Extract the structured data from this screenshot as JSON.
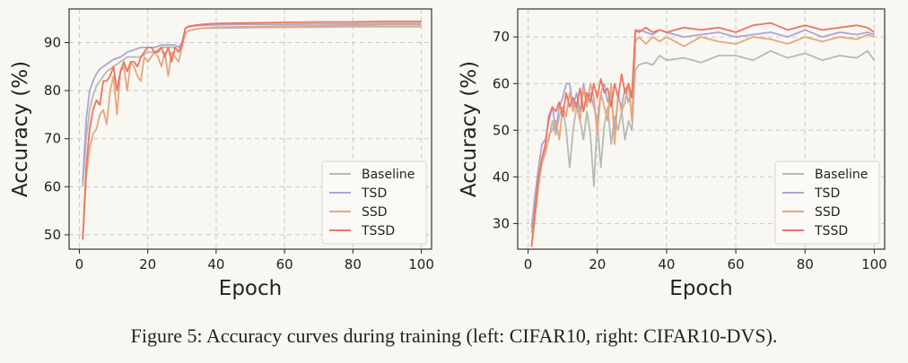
{
  "caption": "Figure 5: Accuracy curves during training (left: CIFAR10, right: CIFAR10-DVS).",
  "series_colors": {
    "Baseline": "#b8b8b4",
    "TSD": "#a9a6d6",
    "SSD": "#e8a67c",
    "TSSD": "#ec7560"
  },
  "chart_data": [
    {
      "type": "line",
      "xlabel": "Epoch",
      "ylabel": "Accuracy (%)",
      "xlim": [
        -3,
        103
      ],
      "ylim": [
        47,
        97
      ],
      "xticks": [
        0,
        20,
        40,
        60,
        80,
        100
      ],
      "yticks": [
        50,
        60,
        70,
        80,
        90
      ],
      "grid": true,
      "legend_position": "bottom-right",
      "series": [
        {
          "name": "Baseline",
          "x": [
            1,
            2,
            3,
            4,
            5,
            6,
            8,
            10,
            12,
            14,
            16,
            18,
            20,
            22,
            24,
            26,
            28,
            29,
            30,
            31,
            32,
            34,
            36,
            40,
            50,
            60,
            70,
            80,
            90,
            100
          ],
          "values": [
            60,
            70,
            76,
            79,
            81,
            82,
            84,
            85,
            86,
            87,
            87,
            87,
            88,
            88,
            89,
            89,
            89,
            88,
            90,
            92,
            92.5,
            92.8,
            93,
            93,
            93.1,
            93.2,
            93.2,
            93.3,
            93.3,
            93.3
          ]
        },
        {
          "name": "TSD",
          "x": [
            1,
            2,
            3,
            4,
            5,
            6,
            8,
            10,
            12,
            14,
            16,
            18,
            20,
            22,
            24,
            26,
            28,
            29,
            30,
            31,
            32,
            34,
            36,
            40,
            50,
            60,
            70,
            80,
            90,
            100
          ],
          "values": [
            61,
            74,
            80,
            82,
            83.5,
            84.5,
            85.5,
            86.5,
            87,
            88,
            88.5,
            89,
            89,
            89,
            89.5,
            89.5,
            89.5,
            89,
            90,
            93,
            93.3,
            93.5,
            93.6,
            93.7,
            93.8,
            93.8,
            93.9,
            93.9,
            94,
            94
          ]
        },
        {
          "name": "SSD",
          "x": [
            1,
            2,
            3,
            4,
            5,
            6,
            7,
            8,
            9,
            10,
            11,
            12,
            13,
            14,
            15,
            16,
            17,
            18,
            19,
            20,
            21,
            22,
            23,
            24,
            25,
            26,
            27,
            28,
            29,
            30,
            31,
            32,
            34,
            36,
            40,
            50,
            60,
            70,
            80,
            90,
            100
          ],
          "values": [
            49,
            62,
            68,
            71,
            72,
            75,
            76,
            73,
            80,
            83,
            75,
            84,
            85,
            80,
            86,
            85,
            83,
            82,
            87,
            86,
            87,
            88,
            87,
            85,
            88,
            83,
            88,
            87,
            86,
            89,
            92,
            92.5,
            92.8,
            93,
            93.2,
            93.3,
            93.4,
            93.5,
            93.6,
            93.7,
            93.7
          ]
        },
        {
          "name": "TSSD",
          "x": [
            1,
            2,
            3,
            4,
            5,
            6,
            7,
            8,
            9,
            10,
            11,
            12,
            13,
            14,
            15,
            16,
            17,
            18,
            19,
            20,
            21,
            22,
            23,
            24,
            25,
            26,
            27,
            28,
            29,
            30,
            31,
            32,
            34,
            36,
            40,
            50,
            60,
            70,
            80,
            90,
            100
          ],
          "values": [
            49,
            64,
            72,
            76,
            78,
            77,
            82,
            82,
            83,
            85,
            80,
            84,
            86,
            84,
            86,
            86,
            85,
            87,
            88,
            89,
            89,
            88,
            88,
            89,
            87,
            89,
            86,
            89,
            88,
            89.5,
            93,
            93.4,
            93.6,
            93.8,
            94,
            94.1,
            94.2,
            94.3,
            94.3,
            94.4,
            94.4
          ]
        }
      ]
    },
    {
      "type": "line",
      "xlabel": "Epoch",
      "ylabel": "Accuracy (%)",
      "xlim": [
        -3,
        103
      ],
      "ylim": [
        24.5,
        76
      ],
      "xticks": [
        0,
        20,
        40,
        60,
        80,
        100
      ],
      "yticks": [
        30,
        40,
        50,
        60,
        70
      ],
      "grid": true,
      "legend_position": "bottom-right",
      "series": [
        {
          "name": "Baseline",
          "x": [
            1,
            2,
            3,
            4,
            5,
            6,
            7,
            8,
            9,
            10,
            11,
            12,
            13,
            14,
            15,
            16,
            17,
            18,
            19,
            20,
            21,
            22,
            23,
            24,
            25,
            26,
            27,
            28,
            29,
            30,
            31,
            32,
            34,
            36,
            38,
            40,
            45,
            50,
            55,
            60,
            65,
            70,
            75,
            80,
            85,
            90,
            95,
            98,
            100
          ],
          "values": [
            28,
            33,
            38,
            44,
            46,
            48,
            52,
            49,
            53,
            55,
            50,
            42,
            50,
            55,
            52,
            48,
            54,
            49,
            38,
            52,
            42,
            51,
            55,
            47,
            53,
            50,
            54,
            48,
            52,
            50,
            63,
            64,
            64.5,
            64,
            66,
            65,
            65.5,
            64.5,
            66,
            66,
            65,
            67,
            65.5,
            66.5,
            65,
            66,
            65.5,
            67,
            65
          ]
        },
        {
          "name": "TSD",
          "x": [
            1,
            2,
            3,
            4,
            5,
            6,
            7,
            8,
            9,
            10,
            11,
            12,
            13,
            14,
            15,
            16,
            17,
            18,
            19,
            20,
            21,
            22,
            23,
            24,
            25,
            26,
            27,
            28,
            29,
            30,
            31,
            32,
            34,
            36,
            38,
            40,
            45,
            50,
            55,
            60,
            65,
            70,
            75,
            80,
            85,
            90,
            95,
            98,
            100
          ],
          "values": [
            29,
            36,
            42,
            47,
            48,
            52,
            55,
            50,
            55,
            57,
            60,
            60,
            55,
            58,
            54,
            60,
            56,
            58,
            55,
            52,
            58,
            60,
            56,
            58,
            50,
            57,
            55,
            59,
            56,
            58,
            71,
            71.5,
            71,
            70.5,
            71.5,
            71,
            70,
            70.5,
            71,
            70,
            70.5,
            71,
            70,
            71.5,
            70,
            71,
            70.5,
            71,
            70.5
          ]
        },
        {
          "name": "SSD",
          "x": [
            1,
            2,
            3,
            4,
            5,
            6,
            7,
            8,
            9,
            10,
            11,
            12,
            13,
            14,
            15,
            16,
            17,
            18,
            19,
            20,
            21,
            22,
            23,
            24,
            25,
            26,
            27,
            28,
            29,
            30,
            31,
            32,
            34,
            36,
            38,
            40,
            45,
            50,
            55,
            60,
            65,
            70,
            75,
            80,
            85,
            90,
            95,
            98,
            100
          ],
          "values": [
            25,
            31,
            38,
            43,
            45,
            49,
            50,
            52,
            48,
            55,
            53,
            58,
            54,
            56,
            52,
            59,
            55,
            60,
            57,
            49,
            58,
            55,
            52,
            60,
            47,
            58,
            54,
            56,
            60,
            52,
            69,
            70,
            68.5,
            70,
            69,
            70,
            68,
            70,
            69,
            68.5,
            70,
            69.5,
            68.5,
            70,
            69,
            70,
            69.5,
            70.5,
            70
          ]
        },
        {
          "name": "TSSD",
          "x": [
            1,
            2,
            3,
            4,
            5,
            6,
            7,
            8,
            9,
            10,
            11,
            12,
            13,
            14,
            15,
            16,
            17,
            18,
            19,
            20,
            21,
            22,
            23,
            24,
            25,
            26,
            27,
            28,
            29,
            30,
            31,
            32,
            34,
            36,
            38,
            40,
            45,
            50,
            55,
            60,
            65,
            70,
            75,
            80,
            85,
            90,
            95,
            98,
            100
          ],
          "values": [
            25,
            33,
            40,
            44,
            47,
            53,
            55,
            54,
            56,
            53,
            58,
            55,
            57,
            55,
            59,
            54,
            58,
            56,
            60,
            57,
            61,
            58,
            59,
            55,
            60,
            57,
            62,
            58,
            60,
            57,
            71.5,
            71,
            72,
            71,
            71.5,
            71,
            72,
            71.5,
            72,
            71,
            72.5,
            73,
            71.5,
            72.5,
            71.5,
            72,
            72.5,
            72,
            71
          ]
        }
      ]
    }
  ]
}
